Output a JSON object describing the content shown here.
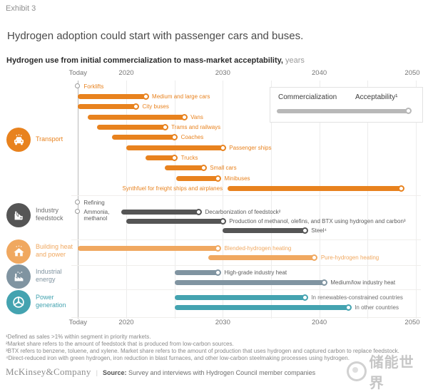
{
  "header": {
    "exhibit": "Exhibit 3",
    "title": "Hydrogen adoption could start with passenger cars and buses.",
    "subtitle_bold": "Hydrogen use from initial commercialization to mass-market acceptability,",
    "subtitle_unit": " years"
  },
  "legend": {
    "left_label": "Commercialization",
    "right_label": "Acceptability¹",
    "bar_color": "#b8b8b8"
  },
  "chart_data": {
    "type": "gantt",
    "title": "Hydrogen use from initial commercialization to mass-market acceptability (years)",
    "x_axis": {
      "ticks": [
        {
          "label": "Today",
          "year": 2015
        },
        {
          "label": "2020",
          "year": 2020
        },
        {
          "label": "2030",
          "year": 2030
        },
        {
          "label": "2040",
          "year": 2040
        },
        {
          "label": "2050",
          "year": 2050
        }
      ],
      "gridline_years": [
        2020,
        2025,
        2030,
        2035,
        2040,
        2045,
        2050
      ],
      "range": [
        2014.5,
        2051
      ],
      "grid": true
    },
    "legend_position": "top-right",
    "sections": [
      {
        "id": "transport",
        "label_lines": "Transport",
        "icon": "car-icon",
        "color": "#E8821E",
        "label_color": "#E8821E",
        "row_label_color": "#E8821E",
        "rows": [
          {
            "type": "marker",
            "label": "Forklifts",
            "at": 2015,
            "line": 0
          },
          {
            "type": "bar",
            "label": "Medium and large cars",
            "start": 2015,
            "end": 2022,
            "line": 1
          },
          {
            "type": "bar",
            "label": "City buses",
            "start": 2015,
            "end": 2021,
            "line": 2
          },
          {
            "type": "bar",
            "label": "Vans",
            "start": 2016,
            "end": 2026,
            "line": 3
          },
          {
            "type": "bar",
            "label": "Trams and railways",
            "start": 2017,
            "end": 2024,
            "line": 4
          },
          {
            "type": "bar",
            "label": "Coaches",
            "start": 2018.5,
            "end": 2025,
            "line": 5
          },
          {
            "type": "bar",
            "label": "Passenger ships",
            "start": 2020,
            "end": 2030,
            "line": 6
          },
          {
            "type": "bar",
            "label": "Trucks",
            "start": 2022,
            "end": 2025,
            "line": 7
          },
          {
            "type": "bar",
            "label": "Small cars",
            "start": 2024,
            "end": 2028,
            "line": 8
          },
          {
            "type": "bar",
            "label": "Minibuses",
            "start": 2025.2,
            "end": 2029.5,
            "line": 9
          },
          {
            "type": "bar",
            "label": "Synthfuel for freight ships and airplanes",
            "start": 2030.5,
            "end": 2048.5,
            "line": 10,
            "label_side": "left"
          }
        ]
      },
      {
        "id": "industry_feedstock",
        "label_lines": "Industry\nfeedstock",
        "icon": "refinery-icon",
        "color": "#555555",
        "label_color": "#6f6f6f",
        "row_label_color": "#5c5c5c",
        "rows": [
          {
            "type": "marker",
            "label": "Refining",
            "at": 2015,
            "line": 0
          },
          {
            "type": "marker",
            "label": "Ammonia,\nmethanol",
            "at": 2015,
            "line": 1
          },
          {
            "type": "bar",
            "label": "Decarbonization of feedstock²",
            "start": 2019.5,
            "end": 2027.5,
            "line": 1
          },
          {
            "type": "bar",
            "label": "Production of methanol, olefins, and BTX using hydrogen and carbon³",
            "start": 2020,
            "end": 2030,
            "line": 2
          },
          {
            "type": "bar",
            "label": "Steel⁴",
            "start": 2030,
            "end": 2038.5,
            "line": 3
          }
        ]
      },
      {
        "id": "building_heat_power",
        "label_lines": "Building heat\nand power",
        "icon": "house-icon",
        "color": "#F0A860",
        "label_color": "#F0A860",
        "row_label_color": "#F0A860",
        "rows": [
          {
            "type": "bar",
            "label": "Blended-hydrogen heating",
            "start": 2015,
            "end": 2029.5,
            "line": 0
          },
          {
            "type": "bar",
            "label": "Pure-hydrogen heating",
            "start": 2028.5,
            "end": 2039.5,
            "line": 1
          }
        ]
      },
      {
        "id": "industrial_energy",
        "label_lines": "Industrial\nenergy",
        "icon": "factory-icon",
        "color": "#8094A1",
        "label_color": "#8094A1",
        "row_label_color": "#5c5c5c",
        "rows": [
          {
            "type": "bar",
            "label": "High-grade industry heat",
            "start": 2025,
            "end": 2029.5,
            "line": 0
          },
          {
            "type": "bar",
            "label": "Medium/low industry heat",
            "start": 2025,
            "end": 2040.5,
            "line": 1
          }
        ]
      },
      {
        "id": "power_generation",
        "label_lines": "Power\ngeneration",
        "icon": "wind-turbine-icon",
        "color": "#44A3B0",
        "label_color": "#44A3B0",
        "row_label_color": "#6f6f6f",
        "rows": [
          {
            "type": "bar",
            "label": "In renewables-constrained countries",
            "start": 2025,
            "end": 2038.5,
            "line": 0
          },
          {
            "type": "bar",
            "label": "In other countries",
            "start": 2025,
            "end": 2043,
            "line": 1
          }
        ]
      }
    ]
  },
  "footnotes": [
    "¹Defined as sales >1% within segment in priority markets.",
    "²Market share refers to the amount of feedstock that is produced from low-carbon sources.",
    "³BTX refers to benzene, toluene, and xylene. Market share refers to the amount of production that uses hydrogen and captured carbon to replace feedstock.",
    "⁴Direct-reduced iron with green hydrogen, iron reduction in blast furnaces, and other low-carbon steelmaking processes using hydrogen."
  ],
  "footer": {
    "brand": "McKinsey&Company",
    "separator": "|",
    "source_label": "Source:",
    "source_text": "Survey and interviews with Hydrogen Council member companies"
  },
  "watermark": {
    "text": "储能世界"
  }
}
